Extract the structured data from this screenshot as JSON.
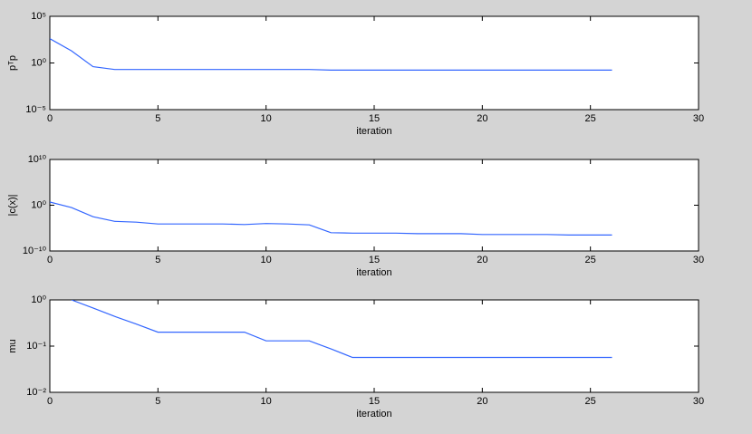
{
  "chart_data": [
    {
      "type": "line",
      "log_y": true,
      "color": "#3366ff",
      "ylabel": "pᵀp",
      "xlabel": "iteration",
      "x": [
        0,
        1,
        2,
        3,
        4,
        5,
        6,
        7,
        8,
        9,
        10,
        11,
        12,
        13,
        14,
        15,
        16,
        17,
        18,
        19,
        20,
        21,
        22,
        23,
        24,
        25,
        26
      ],
      "values": [
        400,
        20,
        0.4,
        0.2,
        0.2,
        0.2,
        0.2,
        0.2,
        0.2,
        0.2,
        0.2,
        0.2,
        0.2,
        0.17,
        0.17,
        0.17,
        0.17,
        0.17,
        0.17,
        0.17,
        0.17,
        0.17,
        0.17,
        0.17,
        0.17,
        0.17,
        0.17
      ],
      "xlim": [
        0,
        30
      ],
      "xticks": [
        0,
        5,
        10,
        15,
        20,
        25,
        30
      ],
      "ylim": [
        1e-05,
        100000
      ],
      "yticks": [
        {
          "value": 1e-05,
          "label": "10⁻⁵"
        },
        {
          "value": 1,
          "label": "10⁰"
        },
        {
          "value": 100000,
          "label": "10⁵"
        }
      ]
    },
    {
      "type": "line",
      "log_y": true,
      "color": "#3366ff",
      "ylabel": "|c(x)|",
      "xlabel": "iteration",
      "x": [
        0,
        1,
        2,
        3,
        4,
        5,
        6,
        7,
        8,
        9,
        10,
        11,
        12,
        13,
        14,
        15,
        16,
        17,
        18,
        19,
        20,
        21,
        22,
        23,
        24,
        25,
        26
      ],
      "values": [
        5,
        0.3,
        0.003,
        0.0003,
        0.0002,
        8e-05,
        8e-05,
        8e-05,
        8e-05,
        6e-05,
        0.0001,
        8e-05,
        5e-05,
        1e-06,
        8e-07,
        8e-07,
        8e-07,
        6e-07,
        6e-07,
        6e-07,
        4e-07,
        4e-07,
        4e-07,
        4e-07,
        3e-07,
        3e-07,
        3e-07
      ],
      "xlim": [
        0,
        30
      ],
      "xticks": [
        0,
        5,
        10,
        15,
        20,
        25,
        30
      ],
      "ylim": [
        1e-10,
        10000000000.0
      ],
      "yticks": [
        {
          "value": 1e-10,
          "label": "10⁻¹⁰"
        },
        {
          "value": 1,
          "label": "10⁰"
        },
        {
          "value": 10000000000.0,
          "label": "10¹⁰"
        }
      ]
    },
    {
      "type": "line",
      "log_y": true,
      "color": "#3366ff",
      "ylabel": "mu",
      "xlabel": "iteration",
      "x": [
        1,
        2,
        3,
        4,
        5,
        6,
        7,
        8,
        9,
        10,
        11,
        12,
        13,
        14,
        15,
        16,
        17,
        18,
        19,
        20,
        21,
        22,
        23,
        24,
        25,
        26
      ],
      "values": [
        1,
        0.67,
        0.44,
        0.3,
        0.2,
        0.2,
        0.2,
        0.2,
        0.2,
        0.13,
        0.13,
        0.13,
        0.087,
        0.057,
        0.057,
        0.057,
        0.057,
        0.057,
        0.057,
        0.057,
        0.057,
        0.057,
        0.057,
        0.057,
        0.057,
        0.057
      ],
      "xlim": [
        0,
        30
      ],
      "xticks": [
        0,
        5,
        10,
        15,
        20,
        25,
        30
      ],
      "ylim": [
        0.01,
        1
      ],
      "yticks": [
        {
          "value": 0.01,
          "label": "10⁻²"
        },
        {
          "value": 0.1,
          "label": "10⁻¹"
        },
        {
          "value": 1,
          "label": "10⁰"
        }
      ]
    }
  ]
}
